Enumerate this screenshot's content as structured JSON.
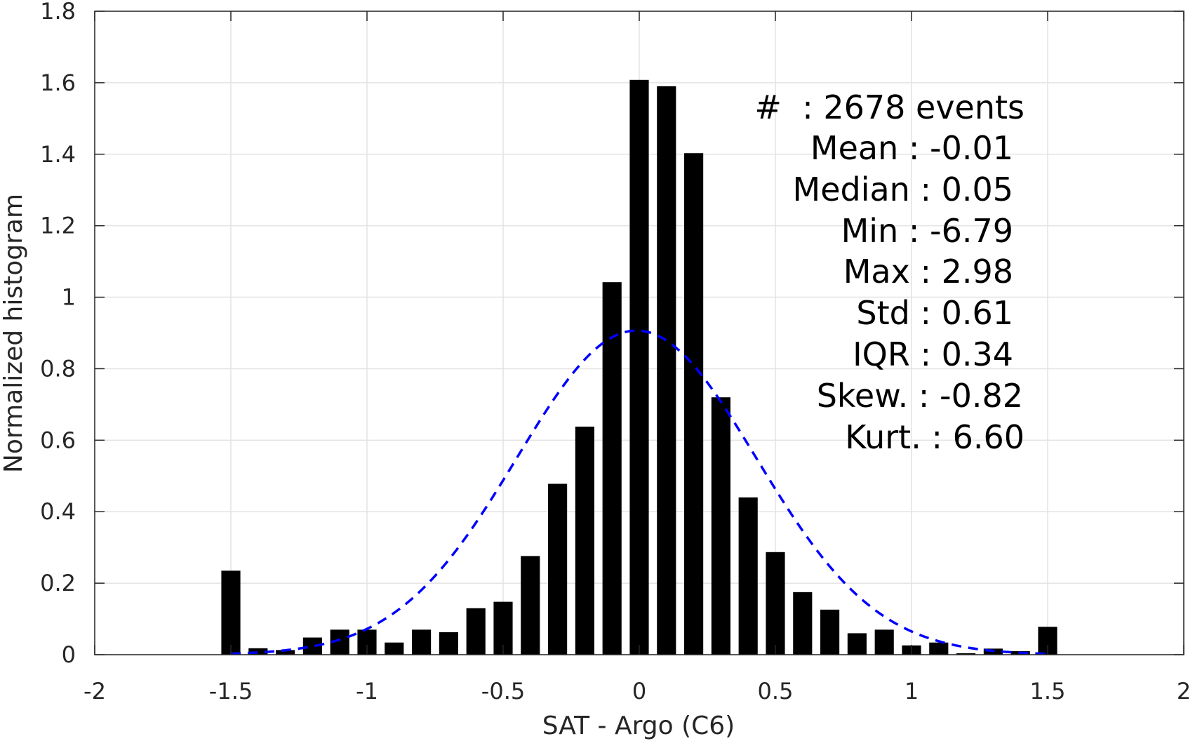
{
  "chart_data": {
    "type": "bar",
    "xlabel": "SAT - Argo (C6)",
    "ylabel": "Normalized histogram",
    "xlim": [
      -2,
      2
    ],
    "ylim": [
      0,
      1.8
    ],
    "grid": true,
    "x_ticks": [
      "-2",
      "-1.5",
      "-1",
      "-0.5",
      "0",
      "0.5",
      "1",
      "1.5",
      "2"
    ],
    "y_ticks": [
      "0",
      "0.2",
      "0.4",
      "0.6",
      "0.8",
      "1",
      "1.2",
      "1.4",
      "1.6",
      "1.8"
    ],
    "bar_width": 0.07,
    "bars": [
      {
        "x": -1.5,
        "y": 0.235
      },
      {
        "x": -1.4,
        "y": 0.018
      },
      {
        "x": -1.3,
        "y": 0.013
      },
      {
        "x": -1.2,
        "y": 0.048
      },
      {
        "x": -1.1,
        "y": 0.07
      },
      {
        "x": -1.0,
        "y": 0.07
      },
      {
        "x": -0.9,
        "y": 0.034
      },
      {
        "x": -0.8,
        "y": 0.07
      },
      {
        "x": -0.7,
        "y": 0.063
      },
      {
        "x": -0.6,
        "y": 0.13
      },
      {
        "x": -0.5,
        "y": 0.148
      },
      {
        "x": -0.4,
        "y": 0.276
      },
      {
        "x": -0.3,
        "y": 0.478
      },
      {
        "x": -0.2,
        "y": 0.638
      },
      {
        "x": -0.1,
        "y": 1.042
      },
      {
        "x": 0.0,
        "y": 1.608
      },
      {
        "x": 0.1,
        "y": 1.59
      },
      {
        "x": 0.2,
        "y": 1.403
      },
      {
        "x": 0.3,
        "y": 0.72
      },
      {
        "x": 0.4,
        "y": 0.44
      },
      {
        "x": 0.5,
        "y": 0.287
      },
      {
        "x": 0.6,
        "y": 0.175
      },
      {
        "x": 0.7,
        "y": 0.126
      },
      {
        "x": 0.8,
        "y": 0.06
      },
      {
        "x": 0.9,
        "y": 0.07
      },
      {
        "x": 1.0,
        "y": 0.026
      },
      {
        "x": 1.1,
        "y": 0.034
      },
      {
        "x": 1.2,
        "y": 0.004
      },
      {
        "x": 1.3,
        "y": 0.017
      },
      {
        "x": 1.4,
        "y": 0.01
      },
      {
        "x": 1.5,
        "y": 0.078
      }
    ],
    "fit_curve": {
      "kind": "normal",
      "mean": -0.01,
      "std": 0.44,
      "x_range": [
        -1.5,
        1.5
      ],
      "color": "#0000ff",
      "style": "dashed"
    },
    "bar_color": "#000000"
  },
  "stats": {
    "count_line": "#  : 2678 events",
    "mean_line": "Mean : -0.01",
    "median_line": "Median : 0.05",
    "min_line": "Min : -6.79",
    "max_line": "Max : 2.98",
    "std_line": "Std : 0.61",
    "iqr_line": "IQR : 0.34",
    "skew_line": "Skew. : -0.82",
    "kurt_line": "Kurt. : 6.60"
  }
}
